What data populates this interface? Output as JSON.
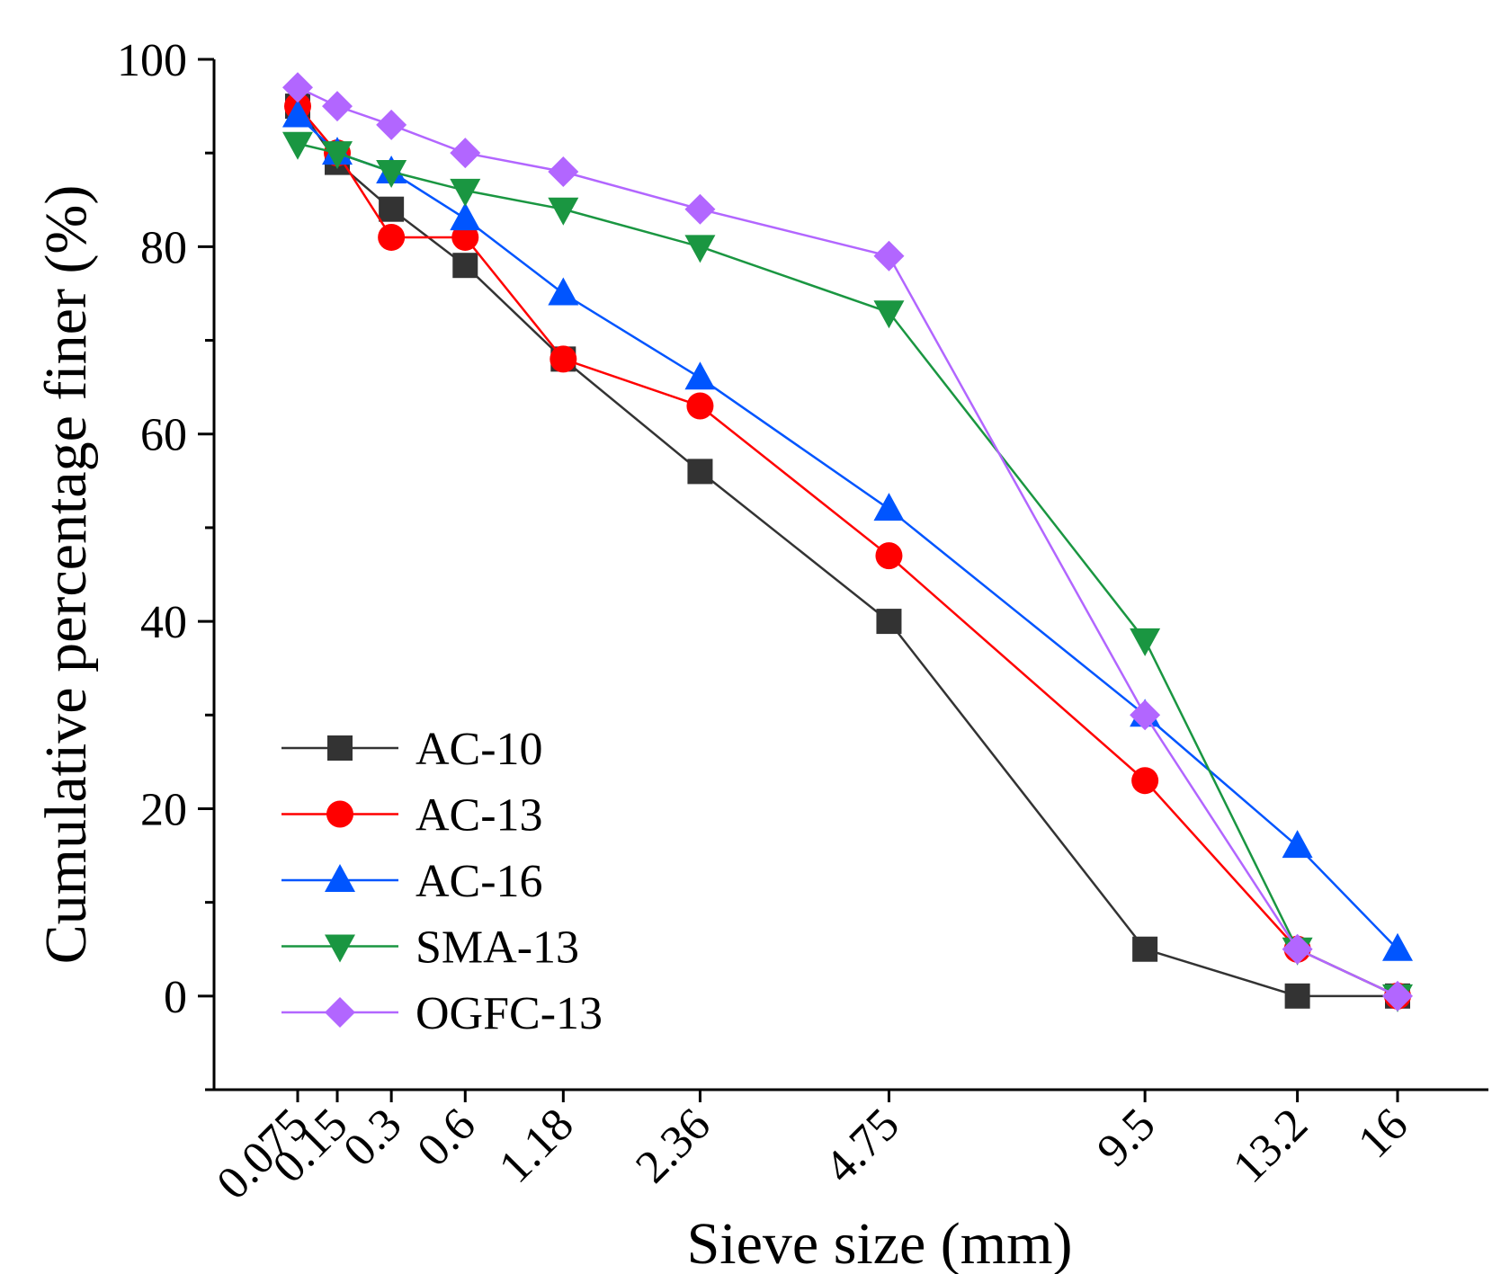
{
  "chart_data": {
    "type": "line",
    "title": "",
    "xlabel": "Sieve size (mm)",
    "ylabel": "Cumulative percentage finer (%)",
    "categories": [
      "0.075",
      "0.15",
      "0.3",
      "0.6",
      "1.18",
      "2.36",
      "4.75",
      "9.5",
      "13.2",
      "16"
    ],
    "x": [
      0.075,
      0.15,
      0.3,
      0.6,
      1.18,
      2.36,
      4.75,
      9.5,
      13.2,
      16
    ],
    "x_scale": "power 0.45",
    "ylim": [
      -10,
      100
    ],
    "yticks": [
      "0",
      "20",
      "40",
      "60",
      "80",
      "100"
    ],
    "grid": false,
    "legend_position": "bottom-left",
    "series": [
      {
        "name": "AC-10",
        "color": "#333333",
        "marker": "square",
        "values": [
          95,
          89,
          84,
          78,
          68,
          56,
          40,
          5,
          0,
          0
        ]
      },
      {
        "name": "AC-13",
        "color": "#ff0000",
        "marker": "circle",
        "values": [
          95,
          90,
          81,
          81,
          68,
          63,
          47,
          23,
          5,
          0
        ]
      },
      {
        "name": "AC-16",
        "color": "#0055ff",
        "marker": "triangle-up",
        "values": [
          94,
          90,
          88,
          83,
          75,
          66,
          52,
          30,
          16,
          5
        ]
      },
      {
        "name": "SMA-13",
        "color": "#1a9641",
        "marker": "triangle-down",
        "values": [
          91,
          90,
          88,
          86,
          84,
          80,
          73,
          38,
          5,
          0
        ]
      },
      {
        "name": "OGFC-13",
        "color": "#b266ff",
        "marker": "diamond",
        "values": [
          97,
          95,
          93,
          90,
          88,
          84,
          79,
          30,
          5,
          0
        ]
      }
    ]
  }
}
